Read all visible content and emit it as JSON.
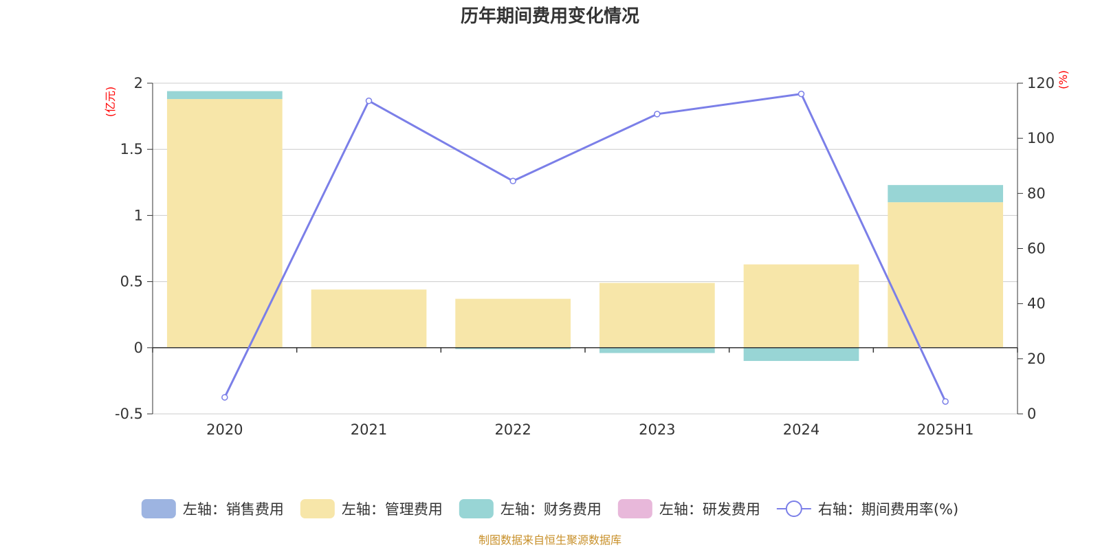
{
  "chart_data": {
    "type": "bar",
    "title": "历年期间费用变化情况",
    "categories": [
      "2020",
      "2021",
      "2022",
      "2023",
      "2024",
      "2025H1"
    ],
    "left_axis": {
      "unit": "(亿元)",
      "ylim": [
        -0.5,
        2
      ],
      "ticks": [
        "-0.5",
        "0",
        "0.5",
        "1",
        "1.5",
        "2"
      ]
    },
    "right_axis": {
      "unit": "(%)",
      "ylim": [
        0,
        120
      ],
      "ticks": [
        "0",
        "20",
        "40",
        "60",
        "80",
        "100",
        "120"
      ]
    },
    "series": [
      {
        "name": "左轴：销售费用",
        "axis": "left",
        "kind": "bar",
        "color": "#9db4e1",
        "values": [
          0,
          0,
          0,
          0,
          0,
          0
        ]
      },
      {
        "name": "左轴：管理费用",
        "axis": "left",
        "kind": "bar",
        "color": "#f7e6a9",
        "values": [
          1.88,
          0.44,
          0.37,
          0.49,
          0.63,
          1.1
        ]
      },
      {
        "name": "左轴：财务费用",
        "axis": "left",
        "kind": "bar",
        "color": "#98d5d5",
        "values": [
          0.06,
          0.0,
          -0.01,
          -0.04,
          -0.1,
          0.13
        ]
      },
      {
        "name": "左轴：研发费用",
        "axis": "left",
        "kind": "bar",
        "color": "#e8b8da",
        "values": [
          0,
          0,
          0,
          0,
          0,
          0
        ]
      },
      {
        "name": "右轴：期间费用率(%)",
        "axis": "right",
        "kind": "line",
        "color": "#7b7fe8",
        "values": [
          6.0,
          113.6,
          84.5,
          108.8,
          116.1,
          4.5
        ]
      }
    ],
    "grid": true,
    "legend_position": "bottom",
    "source": "制图数据来自恒生聚源数据库"
  }
}
